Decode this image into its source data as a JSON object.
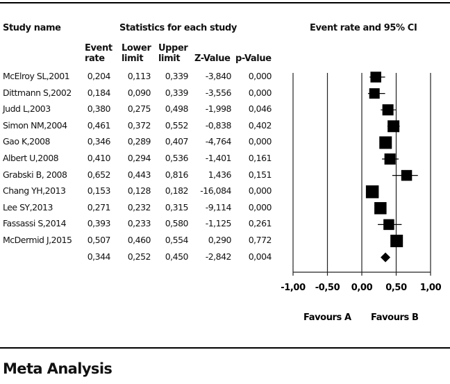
{
  "headers": {
    "study_name": "Study name",
    "statistics": "Statistics for each study",
    "plot_title": "Event rate and 95% CI",
    "columns": [
      [
        "Event",
        "rate"
      ],
      [
        "Lower",
        "limit"
      ],
      [
        "Upper",
        "limit"
      ],
      [
        "Z-Value",
        ""
      ],
      [
        "p-Value",
        ""
      ]
    ]
  },
  "rows": [
    {
      "name": "McElroy SL,2001",
      "rate": "0,204",
      "lower": "0,113",
      "upper": "0,339",
      "z": "-3,840",
      "p": "0,000"
    },
    {
      "name": "Dittmann S,2002",
      "rate": "0,184",
      "lower": "0,090",
      "upper": "0,339",
      "z": "-3,556",
      "p": "0,000"
    },
    {
      "name": "Judd L,2003",
      "rate": "0,380",
      "lower": "0,275",
      "upper": "0,498",
      "z": "-1,998",
      "p": "0,046"
    },
    {
      "name": "Simon NM,2004",
      "rate": "0,461",
      "lower": "0,372",
      "upper": "0,552",
      "z": "-0,838",
      "p": "0,402"
    },
    {
      "name": "Gao K,2008",
      "rate": "0,346",
      "lower": "0,289",
      "upper": "0,407",
      "z": "-4,764",
      "p": "0,000"
    },
    {
      "name": "Albert U,2008",
      "rate": "0,410",
      "lower": "0,294",
      "upper": "0,536",
      "z": "-1,401",
      "p": "0,161"
    },
    {
      "name": "Grabski B, 2008",
      "rate": "0,652",
      "lower": "0,443",
      "upper": "0,816",
      "z": "1,436",
      "p": "0,151"
    },
    {
      "name": "Chang YH,2013",
      "rate": "0,153",
      "lower": "0,128",
      "upper": "0,182",
      "z": "-16,084",
      "p": "0,000"
    },
    {
      "name": "Lee SY,2013",
      "rate": "0,271",
      "lower": "0,232",
      "upper": "0,315",
      "z": "-9,114",
      "p": "0,000"
    },
    {
      "name": "Fassassi S,2014",
      "rate": "0,393",
      "lower": "0,233",
      "upper": "0,580",
      "z": "-1,125",
      "p": "0,261"
    },
    {
      "name": "McDermid J,2015",
      "rate": "0,507",
      "lower": "0,460",
      "upper": "0,554",
      "z": "0,290",
      "p": "0,772"
    }
  ],
  "summary": {
    "name": "",
    "rate": "0,344",
    "lower": "0,252",
    "upper": "0,450",
    "z": "-2,842",
    "p": "0,004"
  },
  "page_title": "Meta Analysis",
  "chart_data": {
    "type": "forest",
    "title": "Event rate and 95% CI",
    "xlim": [
      -1.0,
      1.0
    ],
    "ticks": [
      -1.0,
      -0.5,
      0.0,
      0.5,
      1.0
    ],
    "tick_labels": [
      "-1,00",
      "-0,50",
      "0,00",
      "0,50",
      "1,00"
    ],
    "xlabel_left": "Favours A",
    "xlabel_right": "Favours B",
    "studies": [
      {
        "name": "McElroy SL,2001",
        "rate": 0.204,
        "lower": 0.113,
        "upper": 0.339,
        "weight": 0.55
      },
      {
        "name": "Dittmann S,2002",
        "rate": 0.184,
        "lower": 0.09,
        "upper": 0.339,
        "weight": 0.5
      },
      {
        "name": "Judd L,2003",
        "rate": 0.38,
        "lower": 0.275,
        "upper": 0.498,
        "weight": 0.6
      },
      {
        "name": "Simon NM,2004",
        "rate": 0.461,
        "lower": 0.372,
        "upper": 0.552,
        "weight": 0.7
      },
      {
        "name": "Gao K,2008",
        "rate": 0.346,
        "lower": 0.289,
        "upper": 0.407,
        "weight": 0.8
      },
      {
        "name": "Albert U,2008",
        "rate": 0.41,
        "lower": 0.294,
        "upper": 0.536,
        "weight": 0.6
      },
      {
        "name": "Grabski B, 2008",
        "rate": 0.652,
        "lower": 0.443,
        "upper": 0.816,
        "weight": 0.55
      },
      {
        "name": "Chang YH,2013",
        "rate": 0.153,
        "lower": 0.128,
        "upper": 0.182,
        "weight": 0.85
      },
      {
        "name": "Lee SY,2013",
        "rate": 0.271,
        "lower": 0.232,
        "upper": 0.315,
        "weight": 0.75
      },
      {
        "name": "Fassassi S,2014",
        "rate": 0.393,
        "lower": 0.233,
        "upper": 0.58,
        "weight": 0.55
      },
      {
        "name": "McDermid J,2015",
        "rate": 0.507,
        "lower": 0.46,
        "upper": 0.554,
        "weight": 0.8
      }
    ],
    "summary": {
      "rate": 0.344,
      "lower": 0.252,
      "upper": 0.45
    }
  }
}
